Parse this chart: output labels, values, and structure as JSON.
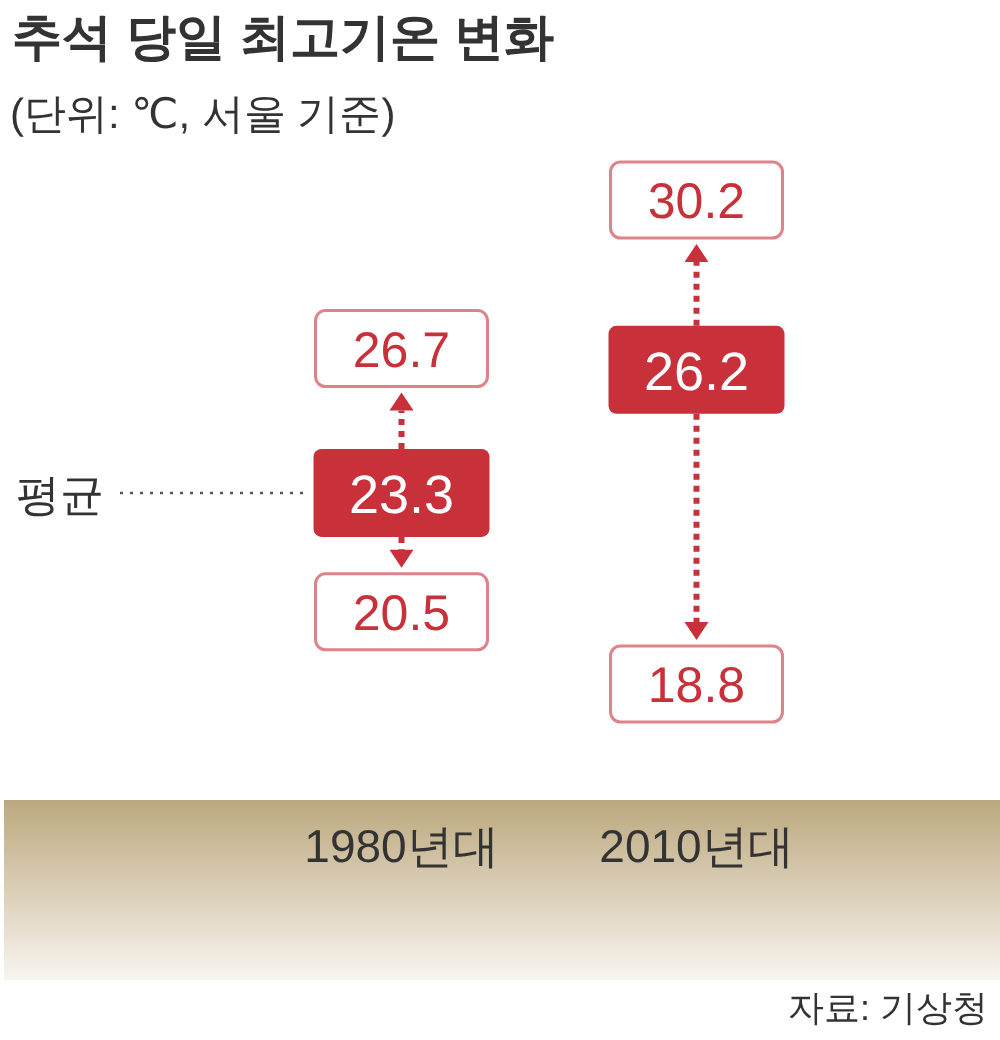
{
  "chart_data": {
    "type": "other",
    "title": "추석 당일 최고기온 변화",
    "subtitle": "(단위: ℃, 서울 기준)",
    "categories": [
      "1980년대",
      "2010년대"
    ],
    "series": [
      {
        "color": "#c8313a",
        "values": [
          26.7,
          30.2
        ]
      },
      {
        "name": "평균",
        "color": "#c8313a",
        "values": [
          23.3,
          26.2
        ]
      },
      {
        "color": "#c8313a",
        "values": [
          20.5,
          18.8
        ]
      }
    ],
    "data_labels": true,
    "annotations": [
      "자료: 기상청"
    ]
  }
}
